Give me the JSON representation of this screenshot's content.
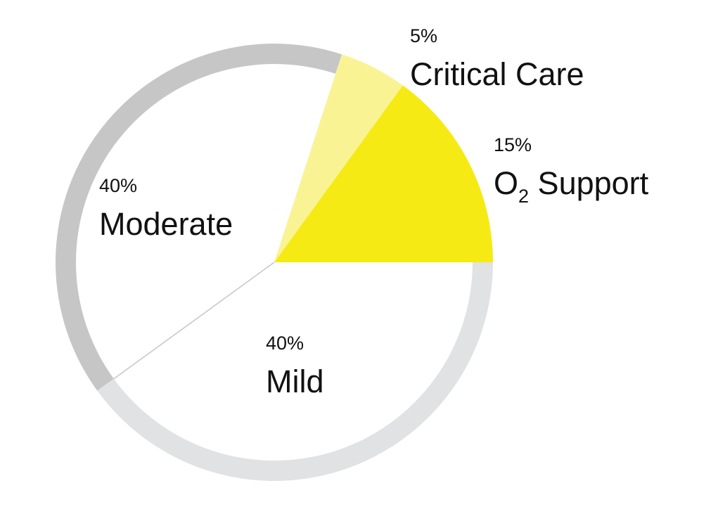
{
  "chart_data": {
    "type": "pie",
    "slices": [
      {
        "label": "O",
        "label_subscript": "2",
        "label_suffix": " Support",
        "value": 15,
        "percent_label": "15%",
        "fill": "#f6ea14",
        "ring": "#f6ea14",
        "key": "o2-support"
      },
      {
        "label": "Critical Care",
        "value": 5,
        "percent_label": "5%",
        "fill": "#faf393",
        "ring": "#faf393",
        "key": "critical-care"
      },
      {
        "label": "Moderate",
        "value": 40,
        "percent_label": "40%",
        "fill": "#ffffff",
        "ring": "#c6c6c6",
        "key": "moderate"
      },
      {
        "label": "Mild",
        "value": 40,
        "percent_label": "40%",
        "fill": "#ffffff",
        "ring": "#e1e2e3",
        "key": "mild"
      }
    ],
    "start_angle_deg": 0,
    "direction": "counterclockwise",
    "divider_color": "#c6c6c6",
    "legend": "none"
  }
}
